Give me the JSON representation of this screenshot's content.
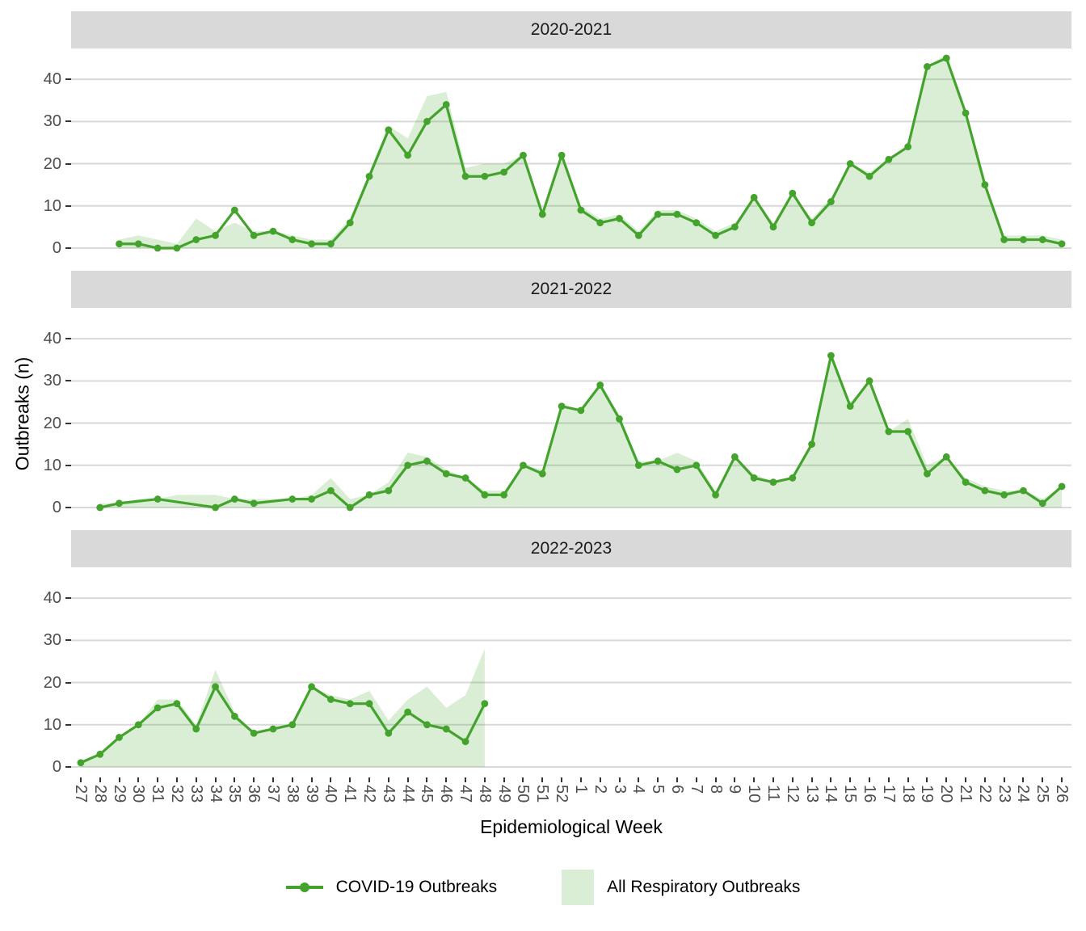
{
  "chart_data": {
    "type": "area+line",
    "facet_variable": "season",
    "xlabel": "Epidemiological Week",
    "ylabel": "Outbreaks (n)",
    "ylim": [
      0,
      40
    ],
    "yticks": [
      0,
      10,
      20,
      30,
      40
    ],
    "grid": "horizontal-major-only",
    "legend_position": "bottom",
    "categories": [
      "27",
      "28",
      "29",
      "30",
      "31",
      "32",
      "33",
      "34",
      "35",
      "36",
      "37",
      "38",
      "39",
      "40",
      "41",
      "42",
      "43",
      "44",
      "45",
      "46",
      "47",
      "48",
      "49",
      "50",
      "51",
      "52",
      "1",
      "2",
      "3",
      "4",
      "5",
      "6",
      "7",
      "8",
      "9",
      "10",
      "11",
      "12",
      "13",
      "14",
      "15",
      "16",
      "17",
      "18",
      "19",
      "20",
      "21",
      "22",
      "23",
      "24",
      "25",
      "26"
    ],
    "legend": [
      {
        "label": "COVID-19 Outbreaks",
        "type": "line-point"
      },
      {
        "label": "All Respiratory Outbreaks",
        "type": "area"
      }
    ],
    "colors": {
      "line": "#44a32d",
      "area_fill": "rgba(68,163,45,0.2)",
      "strip_bg": "#d9d9d9",
      "grid": "#d9d9d9",
      "tick": "#333333",
      "tick_label": "#4d4d4d",
      "text": "#000000"
    },
    "facets": [
      {
        "title": "2020-2021",
        "covid": [
          null,
          null,
          1,
          1,
          0,
          0,
          2,
          3,
          9,
          3,
          4,
          2,
          1,
          1,
          6,
          17,
          28,
          22,
          30,
          34,
          17,
          17,
          18,
          22,
          8,
          22,
          9,
          6,
          7,
          3,
          8,
          8,
          6,
          3,
          5,
          12,
          5,
          13,
          6,
          11,
          20,
          17,
          21,
          24,
          43,
          45,
          32,
          15,
          2,
          2,
          2,
          1
        ],
        "all_respiratory": [
          null,
          null,
          2,
          3,
          2,
          1,
          7,
          4,
          6,
          4,
          4,
          3,
          2,
          2,
          7,
          18,
          29,
          26,
          36,
          37,
          19,
          20,
          20,
          22,
          9,
          22,
          10,
          7,
          8,
          4,
          9,
          9,
          7,
          4,
          6,
          12,
          6,
          13,
          7,
          12,
          20,
          18,
          21,
          24,
          43,
          46,
          33,
          16,
          3,
          3,
          3,
          2
        ]
      },
      {
        "title": "2021-2022",
        "covid": [
          null,
          0,
          1,
          null,
          2,
          null,
          null,
          0,
          2,
          1,
          null,
          2,
          2,
          4,
          0,
          3,
          4,
          10,
          11,
          8,
          7,
          3,
          3,
          10,
          8,
          24,
          23,
          29,
          21,
          10,
          11,
          9,
          10,
          3,
          12,
          7,
          6,
          7,
          15,
          36,
          24,
          30,
          18,
          18,
          8,
          12,
          6,
          4,
          3,
          4,
          1,
          5
        ],
        "all_respiratory": [
          null,
          1,
          1,
          2,
          2,
          3,
          3,
          3,
          2,
          2,
          2,
          2,
          3,
          7,
          2,
          3,
          6,
          13,
          12,
          9,
          7,
          4,
          4,
          10,
          9,
          24,
          23,
          29,
          22,
          11,
          11,
          13,
          11,
          4,
          12,
          8,
          6,
          7,
          15,
          36,
          25,
          30,
          18,
          21,
          10,
          12,
          7,
          5,
          4,
          4,
          2,
          5
        ]
      },
      {
        "title": "2022-2023",
        "covid": [
          1,
          3,
          7,
          10,
          14,
          15,
          9,
          19,
          12,
          8,
          9,
          10,
          19,
          16,
          15,
          15,
          8,
          13,
          10,
          9,
          6,
          15,
          null,
          null,
          null,
          null,
          null,
          null,
          null,
          null,
          null,
          null,
          null,
          null,
          null,
          null,
          null,
          null,
          null,
          null,
          null,
          null,
          null,
          null,
          null,
          null,
          null,
          null,
          null,
          null,
          null,
          null
        ],
        "all_respiratory": [
          1,
          3,
          7,
          10,
          16,
          16,
          10,
          23,
          13,
          8,
          9,
          10,
          19,
          17,
          16,
          18,
          11,
          16,
          19,
          14,
          17,
          28,
          null,
          null,
          null,
          null,
          null,
          null,
          null,
          null,
          null,
          null,
          null,
          null,
          null,
          null,
          null,
          null,
          null,
          null,
          null,
          null,
          null,
          null,
          null,
          null,
          null,
          null,
          null,
          null,
          null,
          null
        ]
      }
    ]
  }
}
